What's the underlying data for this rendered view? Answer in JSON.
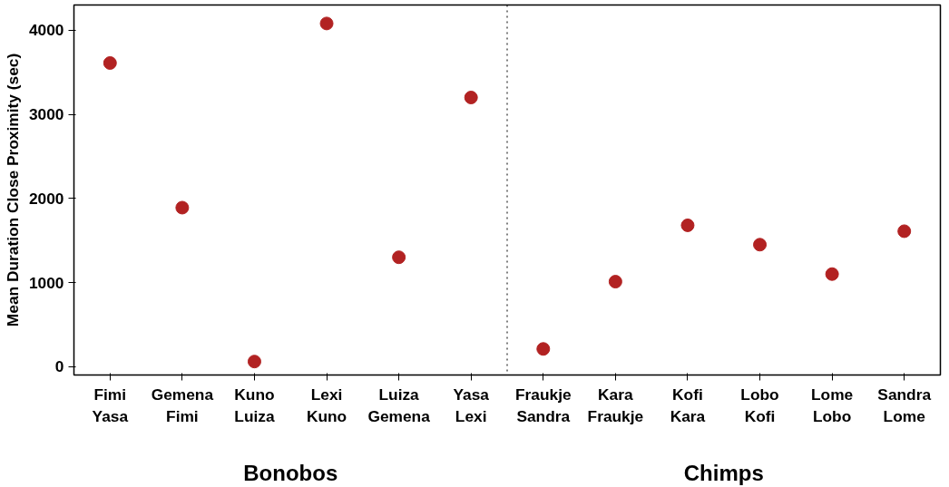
{
  "chart_data": {
    "type": "scatter",
    "ylabel": "Mean Duration Close Proximity (sec)",
    "categories": [
      "Fimi\nYasa",
      "Gemena\nFimi",
      "Kuno\nLuiza",
      "Lexi\nKuno",
      "Luiza\nGemena",
      "Yasa\nLexi",
      "Fraukje\nSandra",
      "Kara\nFraukje",
      "Kofi\nKara",
      "Lobo\nKofi",
      "Lome\nLobo",
      "Sandra\nLome"
    ],
    "series": [
      {
        "color": "#b22222",
        "values": [
          3610,
          1890,
          60,
          4080,
          1300,
          3200,
          210,
          1010,
          1680,
          1450,
          1100,
          1610
        ]
      }
    ],
    "ylim": [
      -100,
      4300
    ],
    "yticks": [
      0,
      1000,
      2000,
      3000,
      4000
    ],
    "grid": false,
    "marker": "circle",
    "annotations": [
      "Bonobos",
      "Chimps"
    ]
  }
}
